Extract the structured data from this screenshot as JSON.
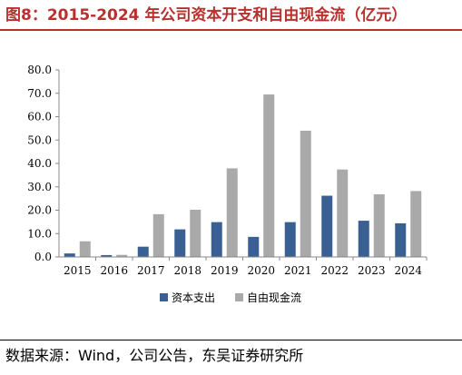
{
  "header": {
    "title": "图8：2015-2024 年公司资本开支和自由现金流（亿元）"
  },
  "footer": {
    "source": "数据来源：Wind，公司公告，东吴证券研究所"
  },
  "colors": {
    "capex": "#3a5f93",
    "fcf": "#a9a9a9",
    "axis": "#888888"
  },
  "chart_data": {
    "type": "bar",
    "categories": [
      "2015",
      "2016",
      "2017",
      "2018",
      "2019",
      "2020",
      "2021",
      "2022",
      "2023",
      "2024"
    ],
    "series": [
      {
        "name": "资本支出",
        "values": [
          1.5,
          0.8,
          4.4,
          11.8,
          14.9,
          8.6,
          14.9,
          26.2,
          15.5,
          14.4
        ]
      },
      {
        "name": "自由现金流",
        "values": [
          6.7,
          0.9,
          18.3,
          20.2,
          37.9,
          69.5,
          54.0,
          37.4,
          26.8,
          28.2
        ]
      }
    ],
    "ylim": [
      0,
      80
    ],
    "yticks": [
      "0.0",
      "10.0",
      "20.0",
      "30.0",
      "40.0",
      "50.0",
      "60.0",
      "70.0",
      "80.0"
    ],
    "legend_position": "bottom-center",
    "grid": false
  }
}
